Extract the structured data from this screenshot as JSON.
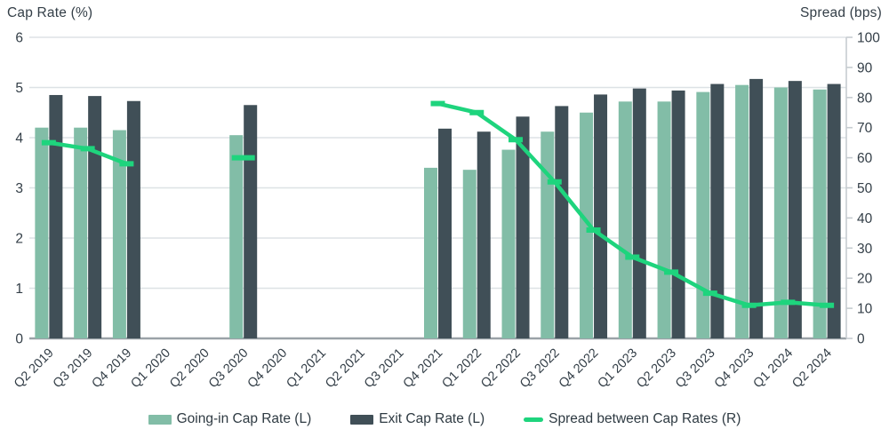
{
  "chart_data": {
    "type": "bar",
    "categories": [
      "Q2 2019",
      "Q3 2019",
      "Q4 2019",
      "Q1 2020",
      "Q2 2020",
      "Q3 2020",
      "Q4 2020",
      "Q1 2021",
      "Q2 2021",
      "Q3 2021",
      "Q4 2021",
      "Q1 2022",
      "Q2 2022",
      "Q3 2022",
      "Q4 2022",
      "Q1 2023",
      "Q2 2023",
      "Q3 2023",
      "Q4 2023",
      "Q1 2024",
      "Q2 2024"
    ],
    "series": [
      {
        "name": "Going-in Cap Rate (L)",
        "type": "bar",
        "axis": "left",
        "color": "#82bda7",
        "values": [
          4.2,
          4.2,
          4.15,
          null,
          null,
          4.05,
          null,
          null,
          null,
          null,
          3.4,
          3.36,
          3.76,
          4.12,
          4.5,
          4.72,
          4.72,
          4.91,
          5.05,
          5.0,
          4.96
        ]
      },
      {
        "name": "Exit Cap Rate (L)",
        "type": "bar",
        "axis": "left",
        "color": "#404f57",
        "values": [
          4.85,
          4.83,
          4.73,
          null,
          null,
          4.65,
          null,
          null,
          null,
          null,
          4.18,
          4.12,
          4.42,
          4.63,
          4.86,
          4.98,
          4.94,
          5.07,
          5.17,
          5.13,
          5.07
        ]
      },
      {
        "name": "Spread between Cap Rates (R)",
        "type": "line",
        "axis": "right",
        "color": "#1ed47d",
        "values": [
          65,
          63,
          58,
          null,
          null,
          60,
          null,
          null,
          null,
          null,
          78,
          75,
          66,
          52,
          36,
          27,
          22,
          15,
          11,
          12,
          11
        ]
      }
    ],
    "left_axis": {
      "title": "Cap Rate (%)",
      "min": 0,
      "max": 6,
      "tick_step": 1
    },
    "right_axis": {
      "title": "Spread (bps)",
      "min": 0,
      "max": 100,
      "tick_step": 10
    },
    "grid": true,
    "legend_position": "bottom"
  },
  "legend": [
    {
      "label": "Going-in Cap Rate (L)",
      "swatch": "bar",
      "color": "#82bda7"
    },
    {
      "label": "Exit Cap Rate (L)",
      "swatch": "bar",
      "color": "#404f57"
    },
    {
      "label": "Spread between Cap Rates (R)",
      "swatch": "line",
      "color": "#1ed47d"
    }
  ],
  "colors": {
    "gridline": "#dde2e5",
    "baseline": "#9aa2a7",
    "right_axis": "#c6ccd0",
    "text": "#333e47"
  }
}
